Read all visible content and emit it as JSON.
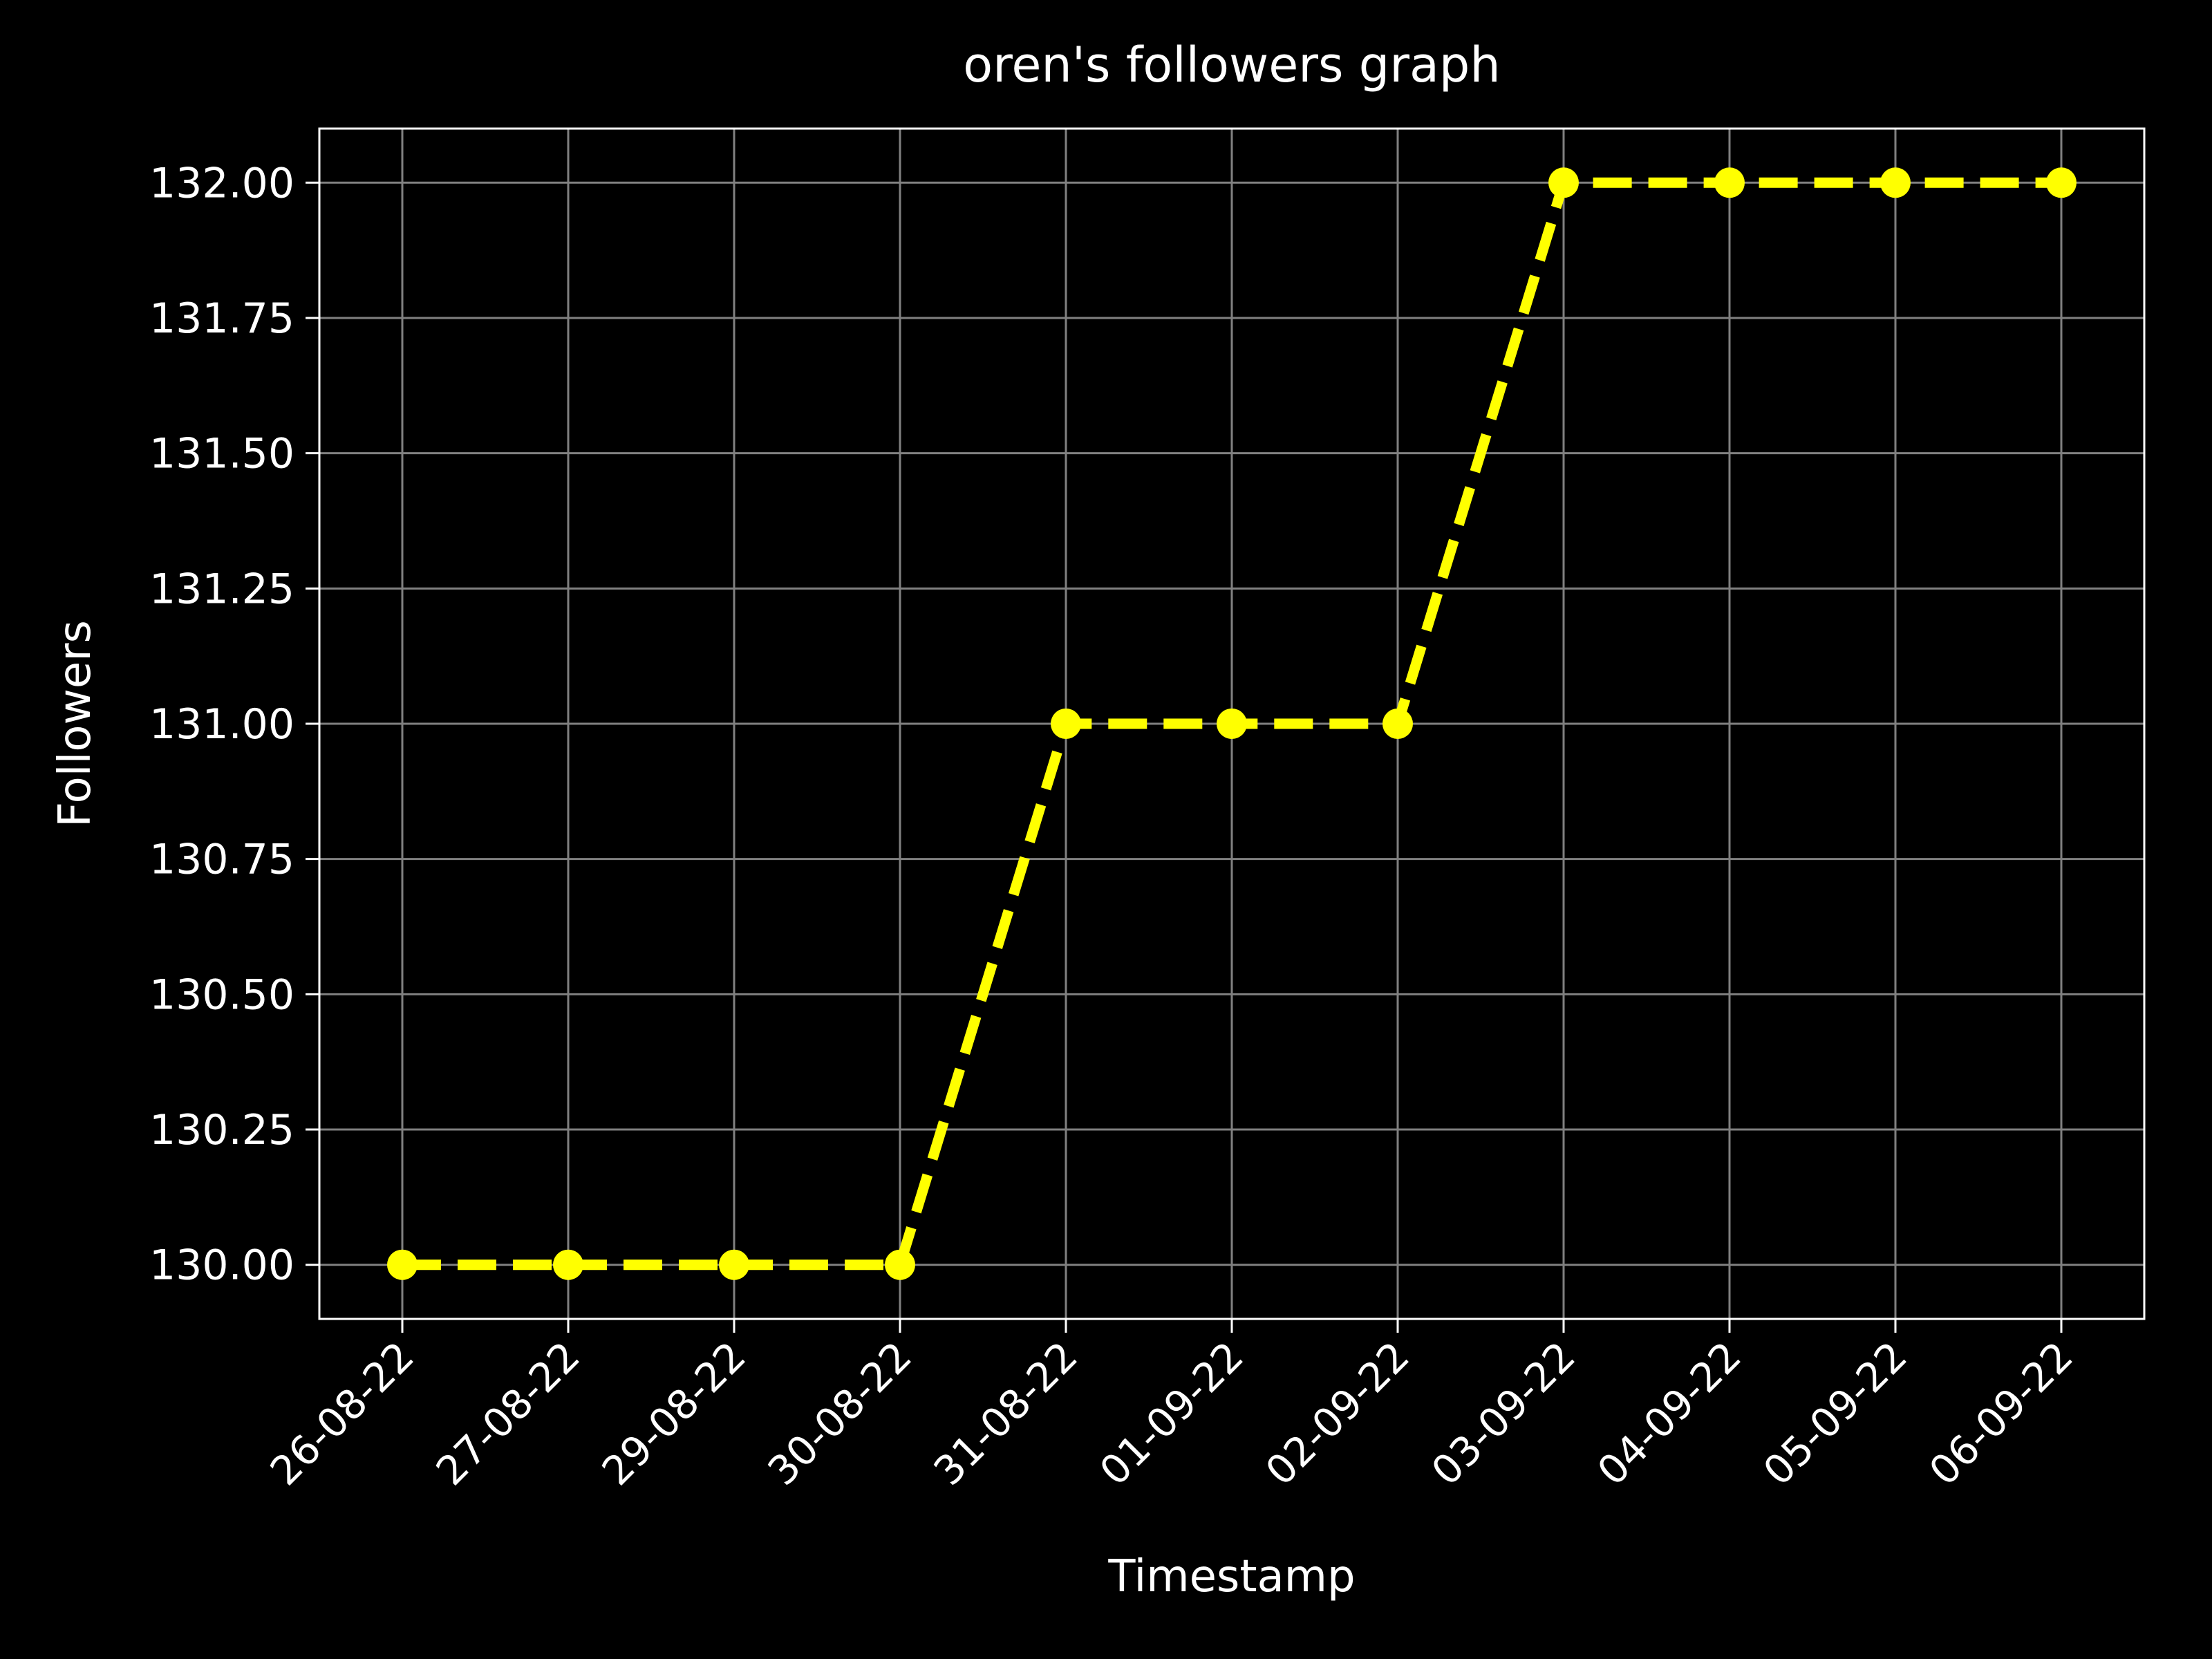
{
  "chart_data": {
    "type": "line",
    "title": "oren's followers graph",
    "xlabel": "Timestamp",
    "ylabel": "Followers",
    "categories": [
      "26-08-22",
      "27-08-22",
      "29-08-22",
      "30-08-22",
      "31-08-22",
      "01-09-22",
      "02-09-22",
      "03-09-22",
      "04-09-22",
      "05-09-22",
      "06-09-22"
    ],
    "series": [
      {
        "values": [
          130,
          130,
          130,
          130,
          131,
          131,
          131,
          132,
          132,
          132,
          132
        ],
        "color": "#ffff00",
        "line_style": "dashed",
        "marker": "circle"
      }
    ],
    "ylim": [
      129.9,
      132.1
    ],
    "yticks": [
      130.0,
      130.25,
      130.5,
      130.75,
      131.0,
      131.25,
      131.5,
      131.75,
      132.0
    ],
    "ytick_labels": [
      "130.00",
      "130.25",
      "130.50",
      "130.75",
      "131.00",
      "131.25",
      "131.50",
      "131.75",
      "132.00"
    ],
    "grid": true,
    "colors": {
      "background": "#000000",
      "text": "#ffffff",
      "grid": "#808080",
      "axes": "#ffffff",
      "series": "#ffff00"
    }
  }
}
